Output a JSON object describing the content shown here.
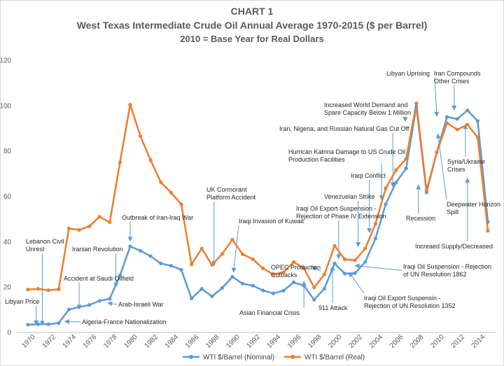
{
  "chart_data": {
    "type": "line",
    "title_lines": [
      "CHART 1",
      "West Texas Intermediate Crude Oil Annual Average 1970-2015 ($ per Barrel)",
      "2010 = Base Year for Real Dollars"
    ],
    "ylim": [
      0,
      120
    ],
    "y_ticks": [
      0,
      20,
      40,
      60,
      80,
      100,
      120
    ],
    "x_tick_labels": [
      "1970",
      "1972",
      "1974",
      "1976",
      "1978",
      "1980",
      "1982",
      "1984",
      "1986",
      "1988",
      "1990",
      "1992",
      "1994",
      "1996",
      "1998",
      "2000",
      "2002",
      "2004",
      "2006",
      "2008",
      "2010",
      "2012",
      "2014"
    ],
    "grid": false,
    "legend_position": "bottom",
    "x": [
      1970,
      1971,
      1972,
      1973,
      1974,
      1975,
      1976,
      1977,
      1978,
      1979,
      1980,
      1981,
      1982,
      1983,
      1984,
      1985,
      1986,
      1987,
      1988,
      1989,
      1990,
      1991,
      1992,
      1993,
      1994,
      1995,
      1996,
      1997,
      1998,
      1999,
      2000,
      2001,
      2002,
      2003,
      2004,
      2005,
      2006,
      2007,
      2008,
      2009,
      2010,
      2011,
      2012,
      2013,
      2014,
      2015
    ],
    "series": [
      {
        "name": "WTI $/Barrel (Nominal)",
        "color": "#5b9bd5",
        "values": [
          3.4,
          3.6,
          3.6,
          4.1,
          10.1,
          11.2,
          12.1,
          13.9,
          14.8,
          25.1,
          37.9,
          36.0,
          33.6,
          30.4,
          29.4,
          27.6,
          15.0,
          19.2,
          15.9,
          19.6,
          24.5,
          21.5,
          20.6,
          18.5,
          17.2,
          18.4,
          22.1,
          20.6,
          14.4,
          19.3,
          30.4,
          25.9,
          26.1,
          31.1,
          41.4,
          56.5,
          66.0,
          72.3,
          99.6,
          61.7,
          79.4,
          95.0,
          94.1,
          97.9,
          93.2,
          48.7
        ]
      },
      {
        "name": "WTI $/Barrel (Real)",
        "color": "#ed7d31",
        "values": [
          18.9,
          19.2,
          18.6,
          19.0,
          45.8,
          45.2,
          46.8,
          51.0,
          48.6,
          75.0,
          100.4,
          86.5,
          75.9,
          66.2,
          61.6,
          56.5,
          30.0,
          37.0,
          29.8,
          34.6,
          40.9,
          34.5,
          32.3,
          28.2,
          25.6,
          26.5,
          31.0,
          28.3,
          19.8,
          25.6,
          38.2,
          32.2,
          31.8,
          37.0,
          47.9,
          63.5,
          71.5,
          76.5,
          101.0,
          62.6,
          79.4,
          92.3,
          89.4,
          91.6,
          86.0,
          44.8
        ]
      }
    ],
    "annotations": [
      {
        "lines": [
          "Libyan Price"
        ]
      },
      {
        "lines": [
          "Lebanon Civil",
          "Unrest"
        ]
      },
      {
        "lines": [
          "Accident at Saudi Oilfield"
        ]
      },
      {
        "lines": [
          "Iranian Revolution"
        ]
      },
      {
        "lines": [
          "Arab-Israeli War"
        ]
      },
      {
        "lines": [
          "Algeria-France Nationalization"
        ]
      },
      {
        "lines": [
          "Outbreak of Iran-Iraq War"
        ]
      },
      {
        "lines": [
          "UK Cormorant",
          "Platform Accident"
        ]
      },
      {
        "lines": [
          "Iraqi Invasion of Kuwait"
        ]
      },
      {
        "lines": [
          "OPEC Production",
          "Cutbacks"
        ]
      },
      {
        "lines": [
          "Asian Financial Crisis"
        ]
      },
      {
        "lines": [
          "911 Attack"
        ]
      },
      {
        "lines": [
          "Iraqi Oil Export Suspension -",
          "Rejection of Phase IV Extension"
        ]
      },
      {
        "lines": [
          "Iraqi Oil Export Suspensin -",
          "Rejection of UN Resolution 1352"
        ]
      },
      {
        "lines": [
          "Iraqi Oil Suspension - Rejection",
          "of UN Resolution 1862"
        ]
      },
      {
        "lines": [
          "Venezuelan Strike"
        ]
      },
      {
        "lines": [
          "Iraqi Conflict"
        ]
      },
      {
        "lines": [
          "Hurrican Katrina Damage to US Crude Oil",
          "Production Facilities"
        ]
      },
      {
        "lines": [
          "Iran, Nigeria, and Russian Natural Gas Cut Off"
        ]
      },
      {
        "lines": [
          "Increased World Demand and",
          "Spare Capacity Below 1 Million"
        ]
      },
      {
        "lines": [
          "Libyan Uprising"
        ]
      },
      {
        "lines": [
          "Iran Compounds",
          "Other Crises"
        ]
      },
      {
        "lines": [
          "Syria/Ukraine",
          "Crises"
        ]
      },
      {
        "lines": [
          "Recession"
        ]
      },
      {
        "lines": [
          "Deepwater Horizon",
          "Spill"
        ]
      },
      {
        "lines": [
          "Increaed Supply/Decreased"
        ]
      }
    ]
  }
}
